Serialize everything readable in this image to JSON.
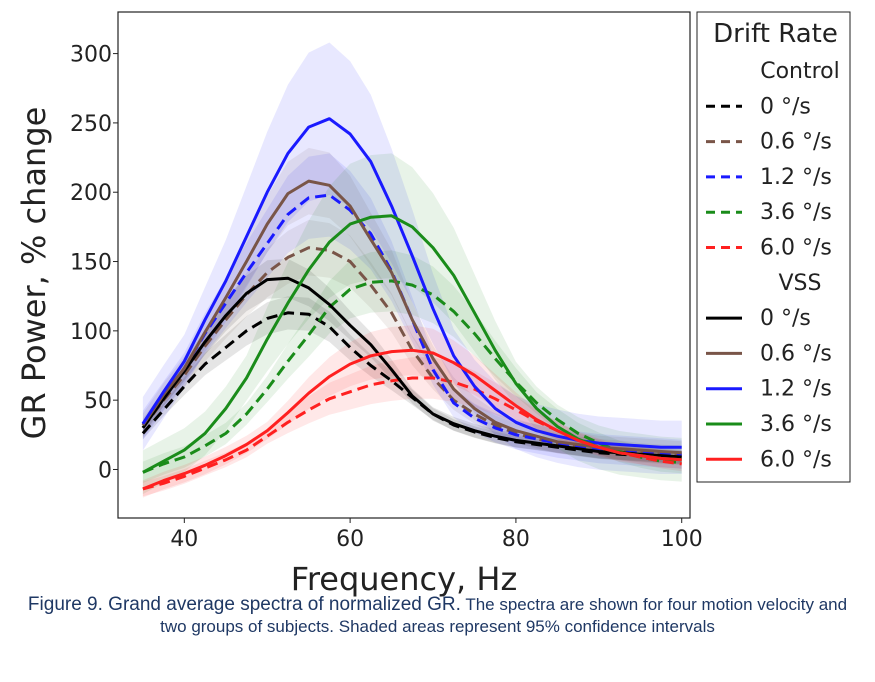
{
  "caption": {
    "lead": "Figure 9. Grand average spectra of normalized GR.",
    "rest": " The spectra are shown for four motion velocity and two groups of subjects. Shaded areas represent 95% confidence intervals",
    "color": "#1f3864"
  },
  "chart_data": {
    "type": "line",
    "title": "",
    "xlabel": "Frequency, Hz",
    "ylabel": "GR Power, % change",
    "xlim": [
      32,
      101
    ],
    "ylim": [
      -35,
      330
    ],
    "xticks": [
      40,
      60,
      80,
      100
    ],
    "yticks": [
      0,
      50,
      100,
      150,
      200,
      250,
      300
    ],
    "grid": false,
    "legend": {
      "title": "Drift Rate",
      "placement": "outside-right",
      "groups": [
        "Control",
        "VSS"
      ]
    },
    "x": [
      35,
      37.5,
      40,
      42.5,
      45,
      47.5,
      50,
      52.5,
      55,
      57.5,
      60,
      62.5,
      65,
      67.5,
      70,
      72.5,
      75,
      77.5,
      80,
      82.5,
      85,
      87.5,
      90,
      92.5,
      95,
      97.5,
      100
    ],
    "series": [
      {
        "name": "0 °/s",
        "group": "Control",
        "style": "dashed",
        "color": "#000000",
        "values": [
          26,
          43,
          60,
          76,
          88,
          100,
          109,
          113,
          112,
          103,
          88,
          75,
          64,
          52,
          40,
          32,
          27,
          23,
          20,
          18,
          16,
          14,
          12,
          11,
          10,
          9,
          8
        ],
        "ci": 12
      },
      {
        "name": "0.6 °/s",
        "group": "Control",
        "style": "dashed",
        "color": "#795548",
        "values": [
          30,
          50,
          68,
          89,
          108,
          126,
          142,
          153,
          160,
          158,
          150,
          133,
          113,
          86,
          66,
          50,
          40,
          32,
          26,
          22,
          19,
          17,
          15,
          14,
          12,
          11,
          10
        ],
        "ci": 20
      },
      {
        "name": "1.2 °/s",
        "group": "Control",
        "style": "dashed",
        "color": "#1a1aff",
        "values": [
          32,
          53,
          73,
          98,
          120,
          142,
          163,
          184,
          196,
          198,
          187,
          170,
          143,
          108,
          72,
          48,
          37,
          30,
          25,
          22,
          19,
          17,
          15,
          14,
          13,
          12,
          11
        ],
        "ci": 30
      },
      {
        "name": "3.6 °/s",
        "group": "Control",
        "style": "dashed",
        "color": "#1a8c1a",
        "values": [
          -2,
          4,
          9,
          17,
          26,
          40,
          58,
          78,
          97,
          117,
          130,
          135,
          136,
          133,
          126,
          114,
          98,
          80,
          63,
          48,
          36,
          26,
          19,
          13,
          9,
          6,
          5
        ],
        "ci": 22
      },
      {
        "name": "6.0 °/s",
        "group": "Control",
        "style": "dashed",
        "color": "#ff2020",
        "values": [
          -14,
          -10,
          -5,
          1,
          7,
          14,
          24,
          34,
          43,
          51,
          56,
          61,
          64,
          66,
          66,
          63,
          58,
          51,
          43,
          35,
          28,
          21,
          16,
          12,
          9,
          6,
          4
        ],
        "ci": 15
      },
      {
        "name": "0 °/s",
        "group": "VSS",
        "style": "solid",
        "color": "#000000",
        "values": [
          30,
          51,
          71,
          92,
          111,
          127,
          137,
          138,
          131,
          119,
          104,
          90,
          72,
          53,
          40,
          33,
          28,
          24,
          21,
          19,
          17,
          15,
          13,
          12,
          11,
          10,
          9
        ],
        "ci": 14
      },
      {
        "name": "0.6 °/s",
        "group": "VSS",
        "style": "solid",
        "color": "#795548",
        "values": [
          32,
          54,
          73,
          99,
          124,
          150,
          177,
          199,
          208,
          205,
          190,
          166,
          142,
          108,
          80,
          58,
          44,
          34,
          28,
          24,
          20,
          18,
          16,
          15,
          14,
          13,
          12
        ],
        "ci": 24
      },
      {
        "name": "1.2 °/s",
        "group": "VSS",
        "style": "solid",
        "color": "#1a1aff",
        "values": [
          33,
          56,
          78,
          108,
          136,
          168,
          200,
          228,
          247,
          253,
          242,
          222,
          190,
          154,
          116,
          82,
          60,
          44,
          34,
          28,
          24,
          21,
          19,
          18,
          17,
          16,
          16
        ],
        "ci": 55
      },
      {
        "name": "3.6 °/s",
        "group": "VSS",
        "style": "solid",
        "color": "#1a8c1a",
        "values": [
          -2,
          6,
          14,
          26,
          44,
          66,
          94,
          120,
          144,
          164,
          177,
          182,
          183,
          175,
          160,
          140,
          113,
          86,
          62,
          44,
          31,
          22,
          16,
          12,
          10,
          8,
          7
        ],
        "ci": 45
      },
      {
        "name": "6.0 °/s",
        "group": "VSS",
        "style": "solid",
        "color": "#ff2020",
        "values": [
          -14,
          -8,
          -3,
          3,
          10,
          18,
          28,
          41,
          55,
          67,
          76,
          82,
          85,
          86,
          84,
          77,
          68,
          57,
          46,
          36,
          28,
          21,
          16,
          12,
          10,
          8,
          7
        ],
        "ci": 18
      }
    ]
  }
}
